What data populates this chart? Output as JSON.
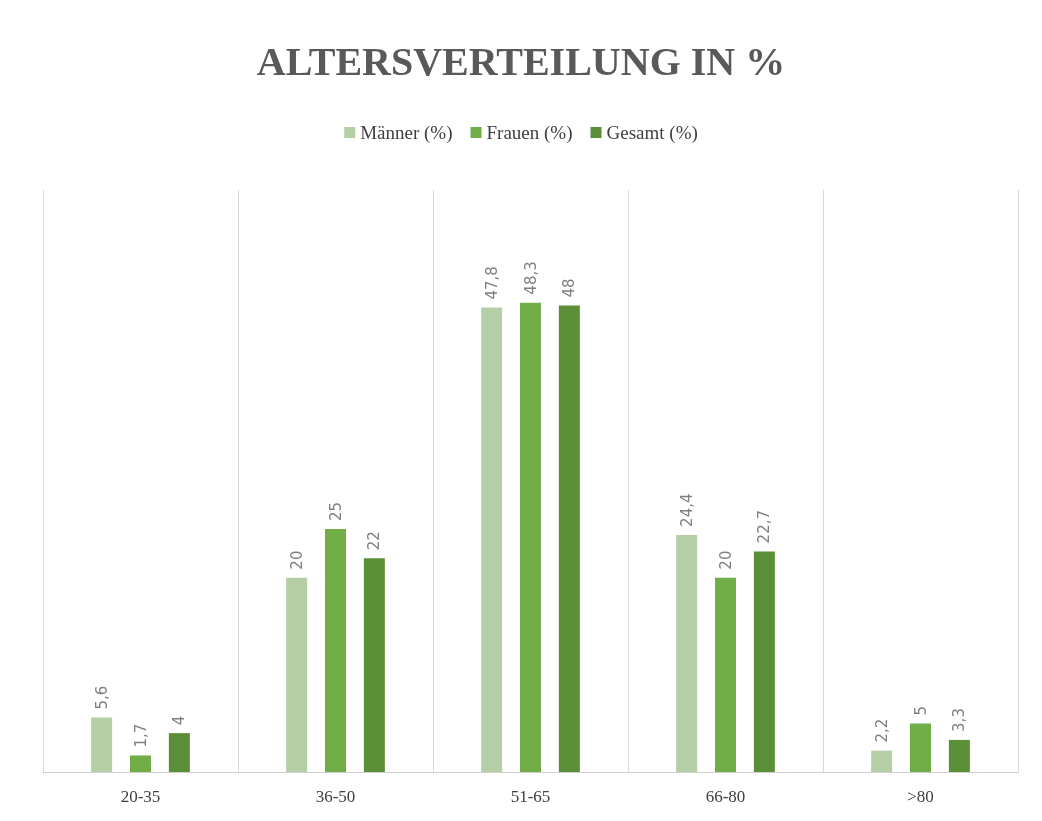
{
  "chart_data": {
    "type": "bar",
    "title": "ALTERSVERTEILUNG IN %",
    "categories": [
      "20-35",
      "36-50",
      "51-65",
      "66-80",
      ">80"
    ],
    "series": [
      {
        "name": "Männer (%)",
        "color": "#b4cfa6",
        "values": [
          5.6,
          20,
          47.8,
          24.4,
          2.2
        ],
        "value_labels": [
          "5,6",
          "20",
          "47,8",
          "24,4",
          "2,2"
        ]
      },
      {
        "name": "Frauen (%)",
        "color": "#70ad47",
        "values": [
          1.7,
          25,
          48.3,
          20,
          5
        ],
        "value_labels": [
          "1,7",
          "25",
          "48,3",
          "20",
          "5"
        ]
      },
      {
        "name": "Gesamt (%)",
        "color": "#5a8f38",
        "values": [
          4,
          22,
          48,
          22.7,
          3.3
        ],
        "value_labels": [
          "4",
          "22",
          "48",
          "22,7",
          "3,3"
        ]
      }
    ],
    "grid": "x",
    "legend": "top",
    "tick_labels": "x"
  }
}
